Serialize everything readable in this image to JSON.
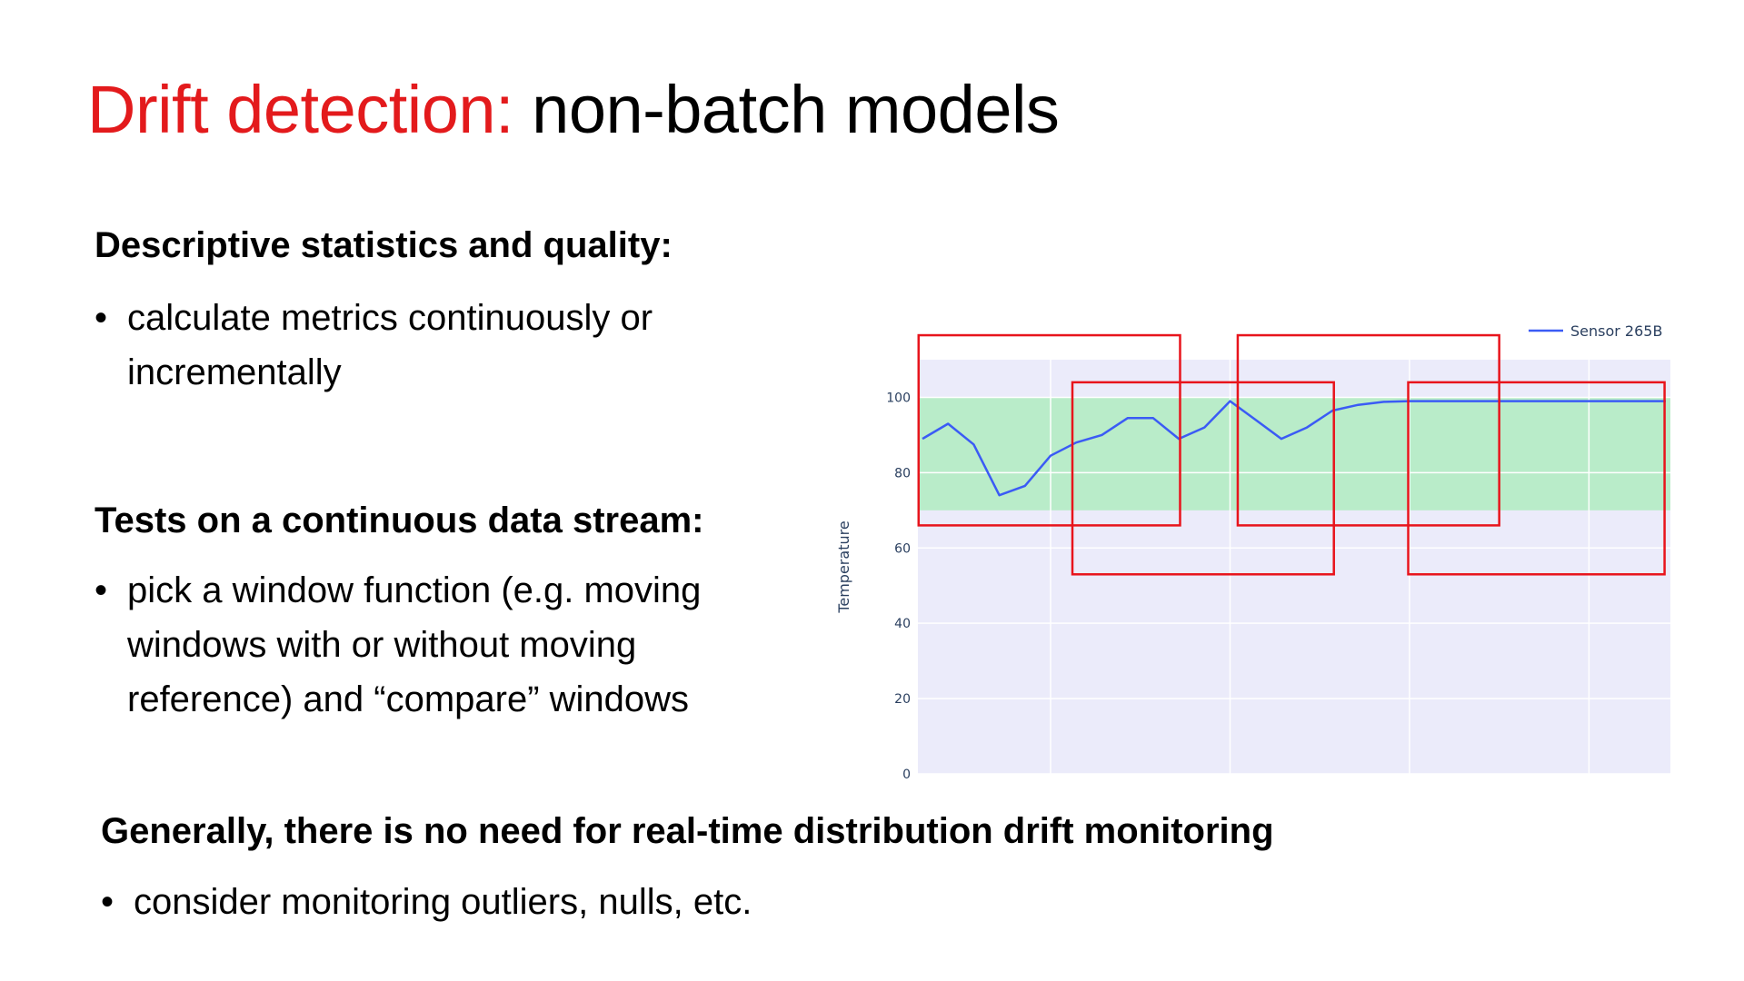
{
  "slide": {
    "title_accent": "Drift detection:",
    "title_rest": " non-batch models",
    "section1": {
      "heading": "Descriptive statistics and quality:",
      "bullets": [
        "calculate metrics continuously or incrementally"
      ]
    },
    "section2": {
      "heading": "Tests on a continuous data stream:",
      "bullets": [
        "pick a window function (e.g. moving windows with or without moving reference) and “compare” windows"
      ]
    },
    "section3": {
      "heading": "Generally, there is no need for real-time distribution drift monitoring",
      "bullets": [
        "consider monitoring outliers, nulls, etc."
      ]
    },
    "bullet_glyph": "•"
  },
  "colors": {
    "accent": "#e31a1c",
    "text": "#000000",
    "plot_bg": "#ebebfa",
    "band": "#b9ecc9",
    "line": "#3b5bf5",
    "windows": "#e8141c"
  },
  "chart_data": {
    "type": "line",
    "title": "",
    "xlabel": "",
    "ylabel": "Temperature",
    "ylim": [
      0,
      110
    ],
    "yticks": [
      "0",
      "20",
      "40",
      "60",
      "80",
      "100"
    ],
    "grid": true,
    "legend_placement": "top-right",
    "series": [
      {
        "name": "Sensor 265B",
        "x": [
          0,
          1,
          2,
          3,
          4,
          5,
          6,
          7,
          8,
          9,
          10,
          11,
          12,
          13,
          14,
          15,
          16,
          17,
          18,
          19,
          20,
          21,
          22,
          23,
          24,
          25,
          26,
          27,
          28,
          29
        ],
        "values": [
          89,
          93,
          87.5,
          74,
          76.5,
          84.5,
          88,
          90,
          94.5,
          94.5,
          89,
          92,
          99,
          94,
          89,
          92,
          96.5,
          98,
          98.8,
          99,
          99,
          99,
          99,
          99,
          99,
          99,
          99,
          99,
          99,
          99
        ]
      }
    ],
    "normal_band": [
      70,
      100
    ],
    "windows": [
      {
        "x_start": -0.15,
        "x_end": 10.05,
        "y_low": 66,
        "y_high": 116.5
      },
      {
        "x_start": 5.85,
        "x_end": 16.05,
        "y_low": 53,
        "y_high": 104
      },
      {
        "x_start": 12.3,
        "x_end": 22.5,
        "y_low": 66,
        "y_high": 116.5
      },
      {
        "x_start": 18.95,
        "x_end": 28.95,
        "y_low": 53,
        "y_high": 104
      }
    ]
  }
}
